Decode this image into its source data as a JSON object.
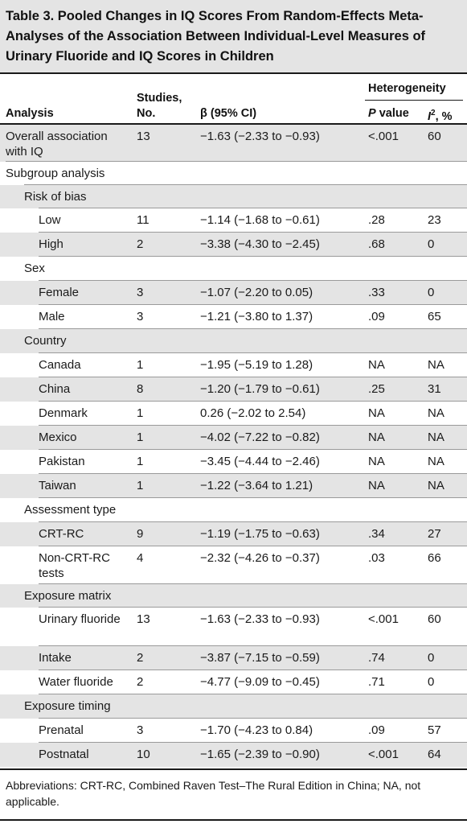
{
  "title": "Table 3. Pooled Changes in IQ Scores From Random-Effects Meta-Analyses of the Association Between Individual-Level Measures of Urinary Fluoride and IQ Scores in Children",
  "header": {
    "analysis": "Analysis",
    "studies_line1": "Studies,",
    "studies_line2": "No.",
    "beta": "β (95% CI)",
    "heterogeneity": "Heterogeneity",
    "p_value_italic": "P",
    "p_value_rest": " value",
    "i2_italic": "I",
    "i2_sup": "2",
    "i2_rest": ", %"
  },
  "rows": [
    {
      "label": "Overall association with IQ",
      "studies": "13",
      "beta": "−1.63 (−2.33 to −0.93)",
      "p": "<.001",
      "i2": "60"
    },
    {
      "label": "Subgroup analysis",
      "studies": "",
      "beta": "",
      "p": "",
      "i2": ""
    },
    {
      "label": "Risk of bias",
      "studies": "",
      "beta": "",
      "p": "",
      "i2": ""
    },
    {
      "label": "Low",
      "studies": "11",
      "beta": "−1.14 (−1.68 to −0.61)",
      "p": ".28",
      "i2": "23"
    },
    {
      "label": "High",
      "studies": "2",
      "beta": "−3.38 (−4.30 to −2.45)",
      "p": ".68",
      "i2": "0"
    },
    {
      "label": "Sex",
      "studies": "",
      "beta": "",
      "p": "",
      "i2": ""
    },
    {
      "label": "Female",
      "studies": "3",
      "beta": "−1.07 (−2.20 to 0.05)",
      "p": ".33",
      "i2": "0"
    },
    {
      "label": "Male",
      "studies": "3",
      "beta": "−1.21 (−3.80 to 1.37)",
      "p": ".09",
      "i2": "65"
    },
    {
      "label": "Country",
      "studies": "",
      "beta": "",
      "p": "",
      "i2": ""
    },
    {
      "label": "Canada",
      "studies": "1",
      "beta": "−1.95 (−5.19 to 1.28)",
      "p": "NA",
      "i2": "NA"
    },
    {
      "label": "China",
      "studies": "8",
      "beta": "−1.20 (−1.79 to −0.61)",
      "p": ".25",
      "i2": "31"
    },
    {
      "label": "Denmark",
      "studies": "1",
      "beta": "0.26 (−2.02 to 2.54)",
      "p": "NA",
      "i2": "NA"
    },
    {
      "label": "Mexico",
      "studies": "1",
      "beta": "−4.02 (−7.22 to −0.82)",
      "p": "NA",
      "i2": "NA"
    },
    {
      "label": "Pakistan",
      "studies": "1",
      "beta": "−3.45 (−4.44 to −2.46)",
      "p": "NA",
      "i2": "NA"
    },
    {
      "label": "Taiwan",
      "studies": "1",
      "beta": "−1.22 (−3.64 to 1.21)",
      "p": "NA",
      "i2": "NA"
    },
    {
      "label": "Assessment type",
      "studies": "",
      "beta": "",
      "p": "",
      "i2": ""
    },
    {
      "label": "CRT-RC",
      "studies": "9",
      "beta": "−1.19 (−1.75 to −0.63)",
      "p": ".34",
      "i2": "27"
    },
    {
      "label": "Non-CRT-RC tests",
      "studies": "4",
      "beta": "−2.32 (−4.26 to −0.37)",
      "p": ".03",
      "i2": "66"
    },
    {
      "label": "Exposure matrix",
      "studies": "",
      "beta": "",
      "p": "",
      "i2": ""
    },
    {
      "label": "Urinary fluoride",
      "studies": "13",
      "beta": "−1.63 (−2.33 to −0.93)",
      "p": "<.001",
      "i2": "60"
    },
    {
      "label": "Intake",
      "studies": "2",
      "beta": "−3.87 (−7.15 to −0.59)",
      "p": ".74",
      "i2": "0"
    },
    {
      "label": "Water fluoride",
      "studies": "2",
      "beta": "−4.77 (−9.09 to −0.45)",
      "p": ".71",
      "i2": "0"
    },
    {
      "label": "Exposure timing",
      "studies": "",
      "beta": "",
      "p": "",
      "i2": ""
    },
    {
      "label": "Prenatal",
      "studies": "3",
      "beta": "−1.70 (−4.23 to 0.84)",
      "p": ".09",
      "i2": "57"
    },
    {
      "label": "Postnatal",
      "studies": "10",
      "beta": "−1.65 (−2.39 to −0.90)",
      "p": "<.001",
      "i2": "64"
    }
  ],
  "footnote": "Abbreviations: CRT-RC, Combined Raven Test–The Rural Edition in China; NA, not applicable."
}
